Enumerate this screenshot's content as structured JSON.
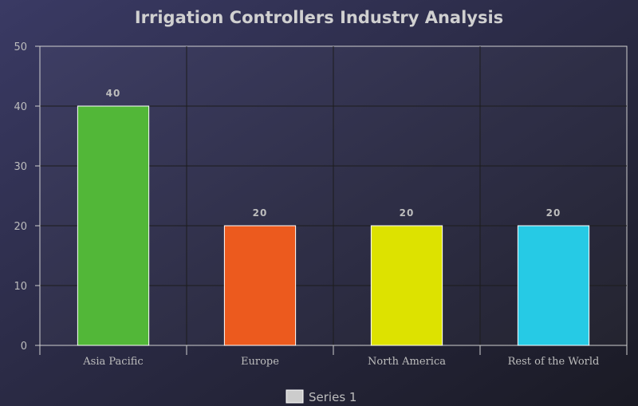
{
  "chart_data": {
    "type": "bar",
    "title": "Irrigation Controllers Industry Analysis",
    "categories": [
      "Asia Pacific",
      "Europe",
      "North America",
      "Rest of the World"
    ],
    "series": [
      {
        "name": "Series 1",
        "values": [
          40,
          20,
          20,
          20
        ]
      }
    ],
    "bar_colors": [
      "#52b738",
      "#ec5a1e",
      "#dde200",
      "#26cae5"
    ],
    "legend_swatch_color": "#cccccc",
    "ylim": [
      0,
      50
    ],
    "yticks": [
      0,
      10,
      20,
      30,
      40,
      50
    ],
    "xlabel": "",
    "ylabel": "",
    "grid": true,
    "data_labels": true,
    "legend_position": "bottom-center",
    "background_colors": [
      "#3a3a64",
      "#1a1a24"
    ]
  }
}
